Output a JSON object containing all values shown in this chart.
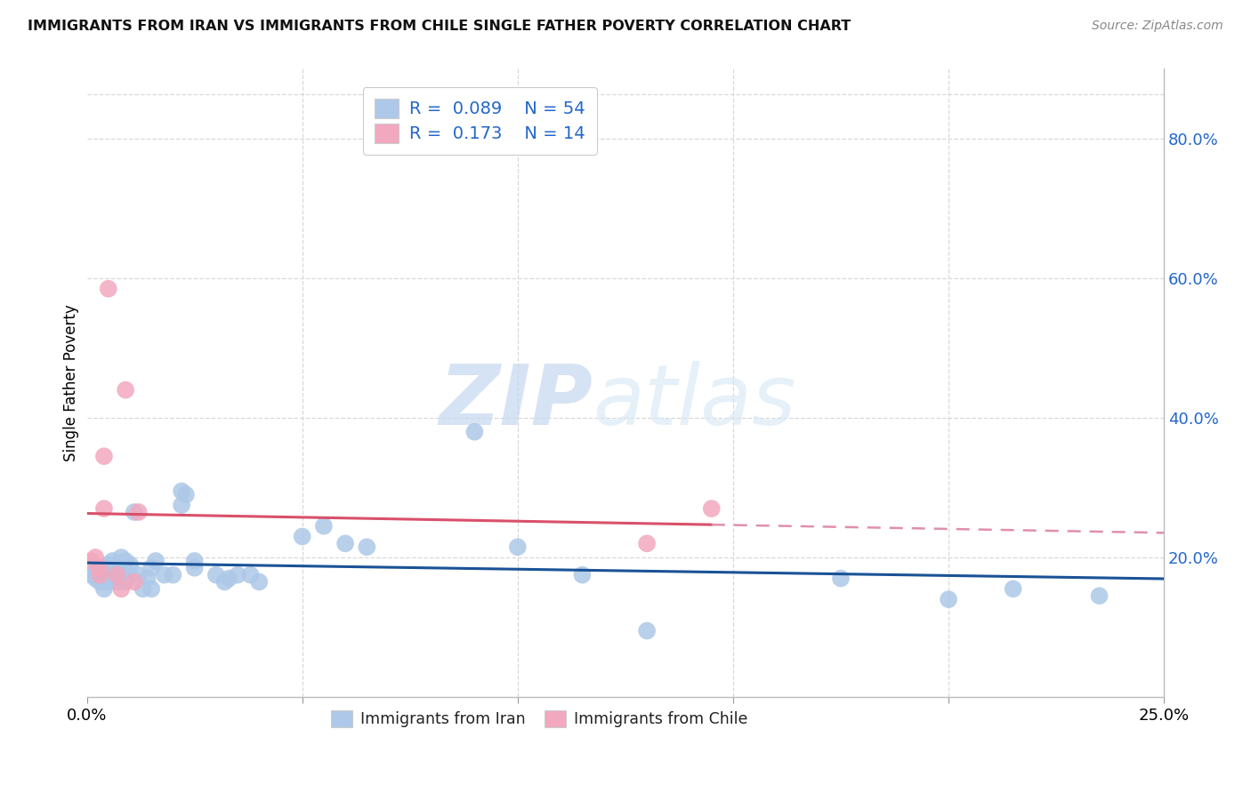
{
  "title": "IMMIGRANTS FROM IRAN VS IMMIGRANTS FROM CHILE SINGLE FATHER POVERTY CORRELATION CHART",
  "source": "Source: ZipAtlas.com",
  "ylabel": "Single Father Poverty",
  "ytick_labels": [
    "80.0%",
    "60.0%",
    "40.0%",
    "20.0%"
  ],
  "ytick_values": [
    0.8,
    0.6,
    0.4,
    0.2
  ],
  "xmin": 0.0,
  "xmax": 0.25,
  "ymin": 0.0,
  "ymax": 0.9,
  "legend_iran": "Immigrants from Iran",
  "legend_chile": "Immigrants from Chile",
  "R_iran": "0.089",
  "N_iran": "54",
  "R_chile": "0.173",
  "N_chile": "14",
  "color_iran": "#adc8e8",
  "color_iran_line": "#1a5296",
  "color_chile": "#f2a8be",
  "color_chile_line": "#d9506a",
  "color_chile_dash": "#e090a8",
  "iran_x": [
    0.001,
    0.002,
    0.002,
    0.003,
    0.003,
    0.004,
    0.004,
    0.004,
    0.005,
    0.005,
    0.005,
    0.006,
    0.006,
    0.006,
    0.007,
    0.007,
    0.008,
    0.008,
    0.009,
    0.009,
    0.01,
    0.01,
    0.011,
    0.012,
    0.013,
    0.014,
    0.015,
    0.015,
    0.016,
    0.018,
    0.02,
    0.022,
    0.022,
    0.023,
    0.025,
    0.025,
    0.03,
    0.032,
    0.033,
    0.035,
    0.038,
    0.04,
    0.05,
    0.055,
    0.06,
    0.065,
    0.09,
    0.1,
    0.115,
    0.13,
    0.175,
    0.2,
    0.215,
    0.235
  ],
  "iran_y": [
    0.175,
    0.17,
    0.18,
    0.175,
    0.165,
    0.185,
    0.175,
    0.155,
    0.17,
    0.165,
    0.19,
    0.175,
    0.17,
    0.195,
    0.185,
    0.165,
    0.2,
    0.175,
    0.195,
    0.165,
    0.19,
    0.175,
    0.265,
    0.175,
    0.155,
    0.17,
    0.185,
    0.155,
    0.195,
    0.175,
    0.175,
    0.295,
    0.275,
    0.29,
    0.195,
    0.185,
    0.175,
    0.165,
    0.17,
    0.175,
    0.175,
    0.165,
    0.23,
    0.245,
    0.22,
    0.215,
    0.38,
    0.215,
    0.175,
    0.095,
    0.17,
    0.14,
    0.155,
    0.145
  ],
  "chile_x": [
    0.001,
    0.002,
    0.003,
    0.003,
    0.004,
    0.004,
    0.005,
    0.007,
    0.008,
    0.009,
    0.011,
    0.012,
    0.13,
    0.145
  ],
  "chile_y": [
    0.195,
    0.2,
    0.175,
    0.185,
    0.345,
    0.27,
    0.585,
    0.175,
    0.155,
    0.44,
    0.165,
    0.265,
    0.22,
    0.27
  ],
  "watermark_zip": "ZIP",
  "watermark_atlas": "atlas",
  "background_color": "#ffffff",
  "grid_color": "#d8d8d8"
}
